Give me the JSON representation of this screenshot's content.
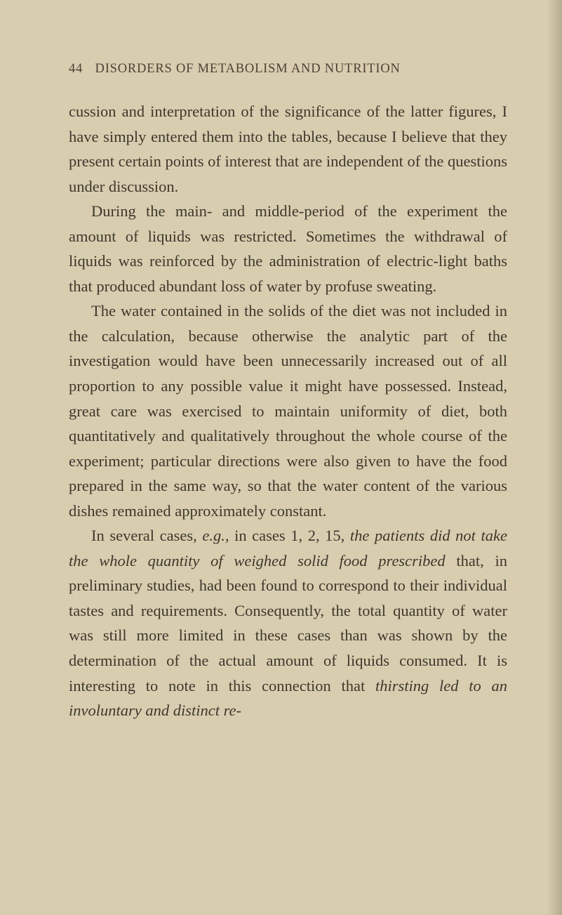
{
  "page": {
    "number": "44",
    "header_title": "DISORDERS OF METABOLISM AND NUTRITION",
    "background_color": "#d9cdb0",
    "text_color": "#3e382c",
    "header_color": "#4a4336",
    "body_fontsize": 22.5,
    "header_fontsize": 18.5,
    "line_height": 1.58,
    "paragraphs": [
      {
        "segments": [
          {
            "text": "cussion and interpretation of the significance of the latter figures, I have simply entered them into the tables, because I believe that they present certain points of interest that are independent of the questions under discussion.",
            "italic": false
          }
        ]
      },
      {
        "segments": [
          {
            "text": "During the main- and middle-period of the experiment the amount of liquids was restricted. Sometimes the withdrawal of liquids was reinforced by the administration of electric-light baths that produced abundant loss of water by profuse sweating.",
            "italic": false
          }
        ]
      },
      {
        "segments": [
          {
            "text": "The water contained in the solids of the diet was not included in the calculation, because otherwise the analytic part of the investigation would have been unnecessarily increased out of all proportion to any possible value it might have possessed. Instead, great care was exercised to maintain uniformity of diet, both quantitatively and qualitatively throughout the whole course of the experiment; particular directions were also given to have the food prepared in the same way, so that the water content of the various dishes remained approximately constant.",
            "italic": false
          }
        ]
      },
      {
        "segments": [
          {
            "text": "In several cases, ",
            "italic": false
          },
          {
            "text": "e.g.,",
            "italic": true
          },
          {
            "text": " in cases 1, 2, 15, ",
            "italic": false
          },
          {
            "text": "the patients did not take the whole quantity of weighed solid food prescribed",
            "italic": true
          },
          {
            "text": " that, in preliminary studies, had been found to correspond to their individual tastes and requirements. Consequently, the total quantity of water was still more limited in these cases than was shown by the determination of the actual amount of liquids consumed. It is interesting to note in this connection that ",
            "italic": false
          },
          {
            "text": "thirsting led to an involuntary and distinct re-",
            "italic": true
          }
        ]
      }
    ]
  }
}
